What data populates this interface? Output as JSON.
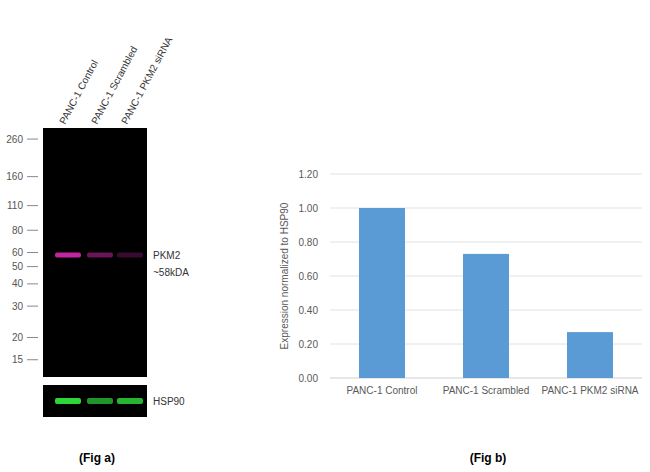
{
  "chart_data": [
    {
      "type": "blot",
      "title": "(Fig a)",
      "categories": [
        "PANC-1 Control",
        "PANC-1 Scrambled",
        "PANC-1 PKM2 siRNA"
      ],
      "series": [
        {
          "name": "PKM2",
          "color": "#c026a0",
          "values": [
            58,
            58,
            58
          ],
          "intensity": [
            1,
            0.55,
            0.3
          ]
        }
      ],
      "annotations": [
        "~58kDA"
      ],
      "ylim": [
        12,
        300
      ],
      "yticks": [
        260,
        160,
        110,
        80,
        60,
        50,
        40,
        30,
        20,
        15
      ],
      "log": "y"
    },
    {
      "type": "blot",
      "categories": [
        null,
        null,
        null
      ],
      "series": [
        {
          "name": "HSP90",
          "color": "#2bd53a",
          "values": [
            1,
            0.7,
            0.85
          ]
        }
      ],
      "tick_labels": false
    },
    {
      "type": "bar",
      "title": "(Fig b)",
      "categories": [
        "PANC-1 Control",
        "PANC-1 Scrambled",
        "PANC-1 PKM2 siRNA"
      ],
      "values": [
        1,
        0.73,
        0.27
      ],
      "color": "#5b9bd5",
      "ylabel": "Expression normalized to HSP90",
      "ylim": [
        0,
        1.2
      ],
      "yticks": [
        {
          "value": 0,
          "label": "0.00"
        },
        {
          "value": 0.2,
          "label": "0.20"
        },
        {
          "value": 0.4,
          "label": "0.40"
        },
        {
          "value": 0.6,
          "label": "0.60"
        },
        {
          "value": 0.8,
          "label": "0.80"
        },
        {
          "value": 1,
          "label": "1.00"
        },
        {
          "value": 1.2,
          "label": "1.20"
        }
      ],
      "grid": true
    }
  ]
}
